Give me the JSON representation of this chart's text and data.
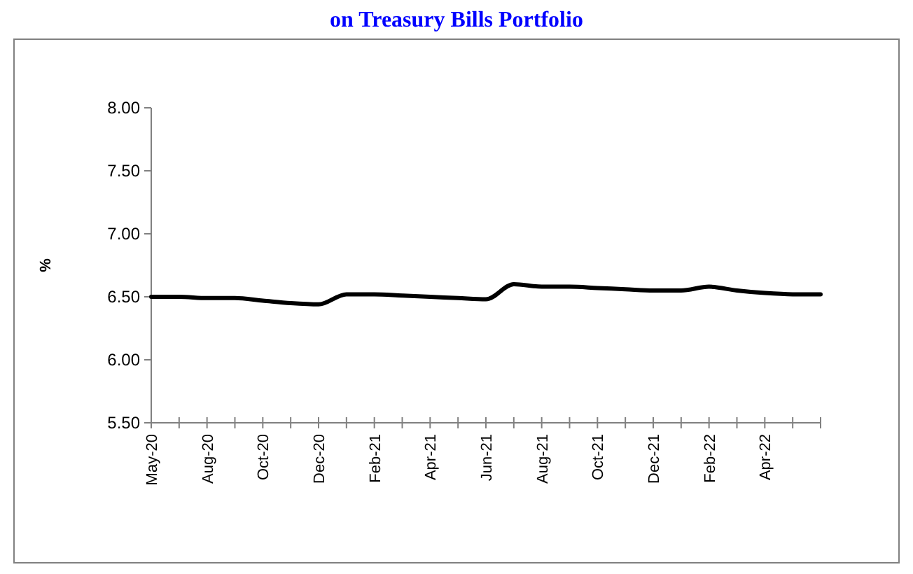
{
  "chart_data": {
    "type": "line",
    "title": "on Treasury Bills Portfolio",
    "ylabel": "%",
    "categories": [
      "May-20",
      null,
      "Aug-20",
      null,
      "Oct-20",
      null,
      "Dec-20",
      null,
      "Feb-21",
      null,
      "Apr-21",
      null,
      "Jun-21",
      null,
      "Aug-21",
      null,
      "Oct-21",
      null,
      "Dec-21",
      null,
      "Feb-22",
      null,
      "Apr-22",
      null,
      null
    ],
    "series": [
      {
        "color": "#000000",
        "values": [
          6.5,
          6.5,
          6.49,
          6.49,
          6.47,
          6.45,
          6.44,
          6.52,
          6.52,
          6.51,
          6.5,
          6.49,
          6.48,
          6.6,
          6.58,
          6.58,
          6.57,
          6.56,
          6.55,
          6.55,
          6.58,
          6.55,
          6.53,
          6.52,
          6.52
        ]
      }
    ],
    "ylim": [
      5.5,
      8
    ],
    "yticks": [
      {
        "value": 5.5,
        "label": "5.50"
      },
      {
        "value": 6,
        "label": "6.00"
      },
      {
        "value": 6.5,
        "label": "6.50"
      },
      {
        "value": 7,
        "label": "7.00"
      },
      {
        "value": 7.5,
        "label": "7.50"
      },
      {
        "value": 8,
        "label": "8.00"
      }
    ],
    "grid": false,
    "marker": "none",
    "line_style": "solid"
  }
}
